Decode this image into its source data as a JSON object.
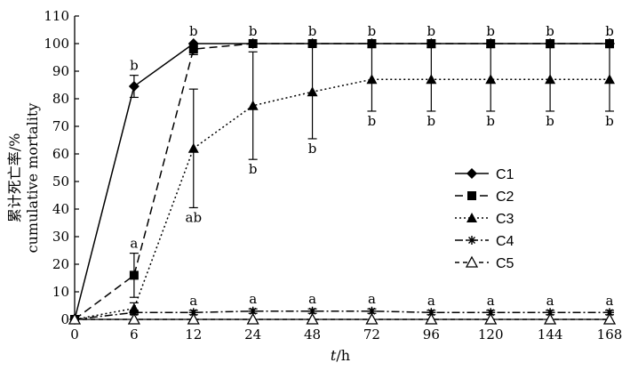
{
  "chart_data": {
    "type": "line",
    "x_categories": [
      "0",
      "6",
      "12",
      "24",
      "48",
      "72",
      "96",
      "120",
      "144",
      "168"
    ],
    "xlabel_italic": "t",
    "xlabel_unit": "/h",
    "ylabel_cn": "累计死亡率/%",
    "ylabel_en": "cumulative mortality",
    "ylim": [
      0,
      110
    ],
    "yticks": [
      "0",
      "10",
      "20",
      "30",
      "40",
      "50",
      "60",
      "70",
      "80",
      "90",
      "100",
      "110"
    ],
    "grid": false,
    "legend_position": "right",
    "series": [
      {
        "name": "C1",
        "line_style": "solid",
        "marker": "filled-diamond",
        "values": [
          0,
          84.5,
          100,
          100,
          100,
          100,
          100,
          100,
          100,
          100
        ],
        "error": [
          0,
          4,
          0,
          0,
          0,
          0,
          0,
          0,
          0,
          0
        ],
        "labels": [
          "",
          "b",
          "b",
          "b",
          "b",
          "b",
          "b",
          "b",
          "b",
          "b"
        ]
      },
      {
        "name": "C2",
        "line_style": "long-dash",
        "marker": "filled-square",
        "values": [
          0,
          16,
          98,
          100,
          100,
          100,
          100,
          100,
          100,
          100
        ],
        "error": [
          0,
          8,
          2,
          0,
          0,
          0,
          0,
          0,
          0,
          0
        ],
        "labels": [
          "",
          "a",
          "",
          "",
          "",
          "",
          "",
          "",
          "",
          ""
        ]
      },
      {
        "name": "C3",
        "line_style": "dotted",
        "marker": "filled-triangle",
        "values": [
          0,
          4,
          62,
          77.5,
          82.5,
          87,
          87,
          87,
          87,
          87
        ],
        "error": [
          0,
          2,
          21.5,
          19.5,
          17,
          11.5,
          11.5,
          11.5,
          11.5,
          11.5
        ],
        "labels": [
          "",
          "",
          "ab",
          "b",
          "b",
          "b",
          "b",
          "b",
          "b",
          "b"
        ]
      },
      {
        "name": "C4",
        "line_style": "dash-dot",
        "marker": "asterisk",
        "values": [
          0,
          2.5,
          2.5,
          3,
          3,
          3,
          2.5,
          2.5,
          2.5,
          2.5
        ],
        "error": [
          0,
          0.8,
          0.8,
          0.8,
          0.8,
          0.8,
          0.8,
          0.8,
          0.8,
          0.8
        ],
        "labels": [
          "",
          "",
          "a",
          "a",
          "a",
          "a",
          "a",
          "a",
          "a",
          "a"
        ]
      },
      {
        "name": "C5",
        "line_style": "short-dash",
        "marker": "open-triangle",
        "values": [
          0,
          0,
          0,
          0,
          0,
          0,
          0,
          0,
          0,
          0
        ],
        "error": [
          0,
          0,
          0,
          0,
          0,
          0,
          0,
          0,
          0,
          0
        ],
        "labels": [
          "",
          "",
          "",
          "",
          "",
          "",
          "",
          "",
          "",
          ""
        ]
      }
    ]
  }
}
